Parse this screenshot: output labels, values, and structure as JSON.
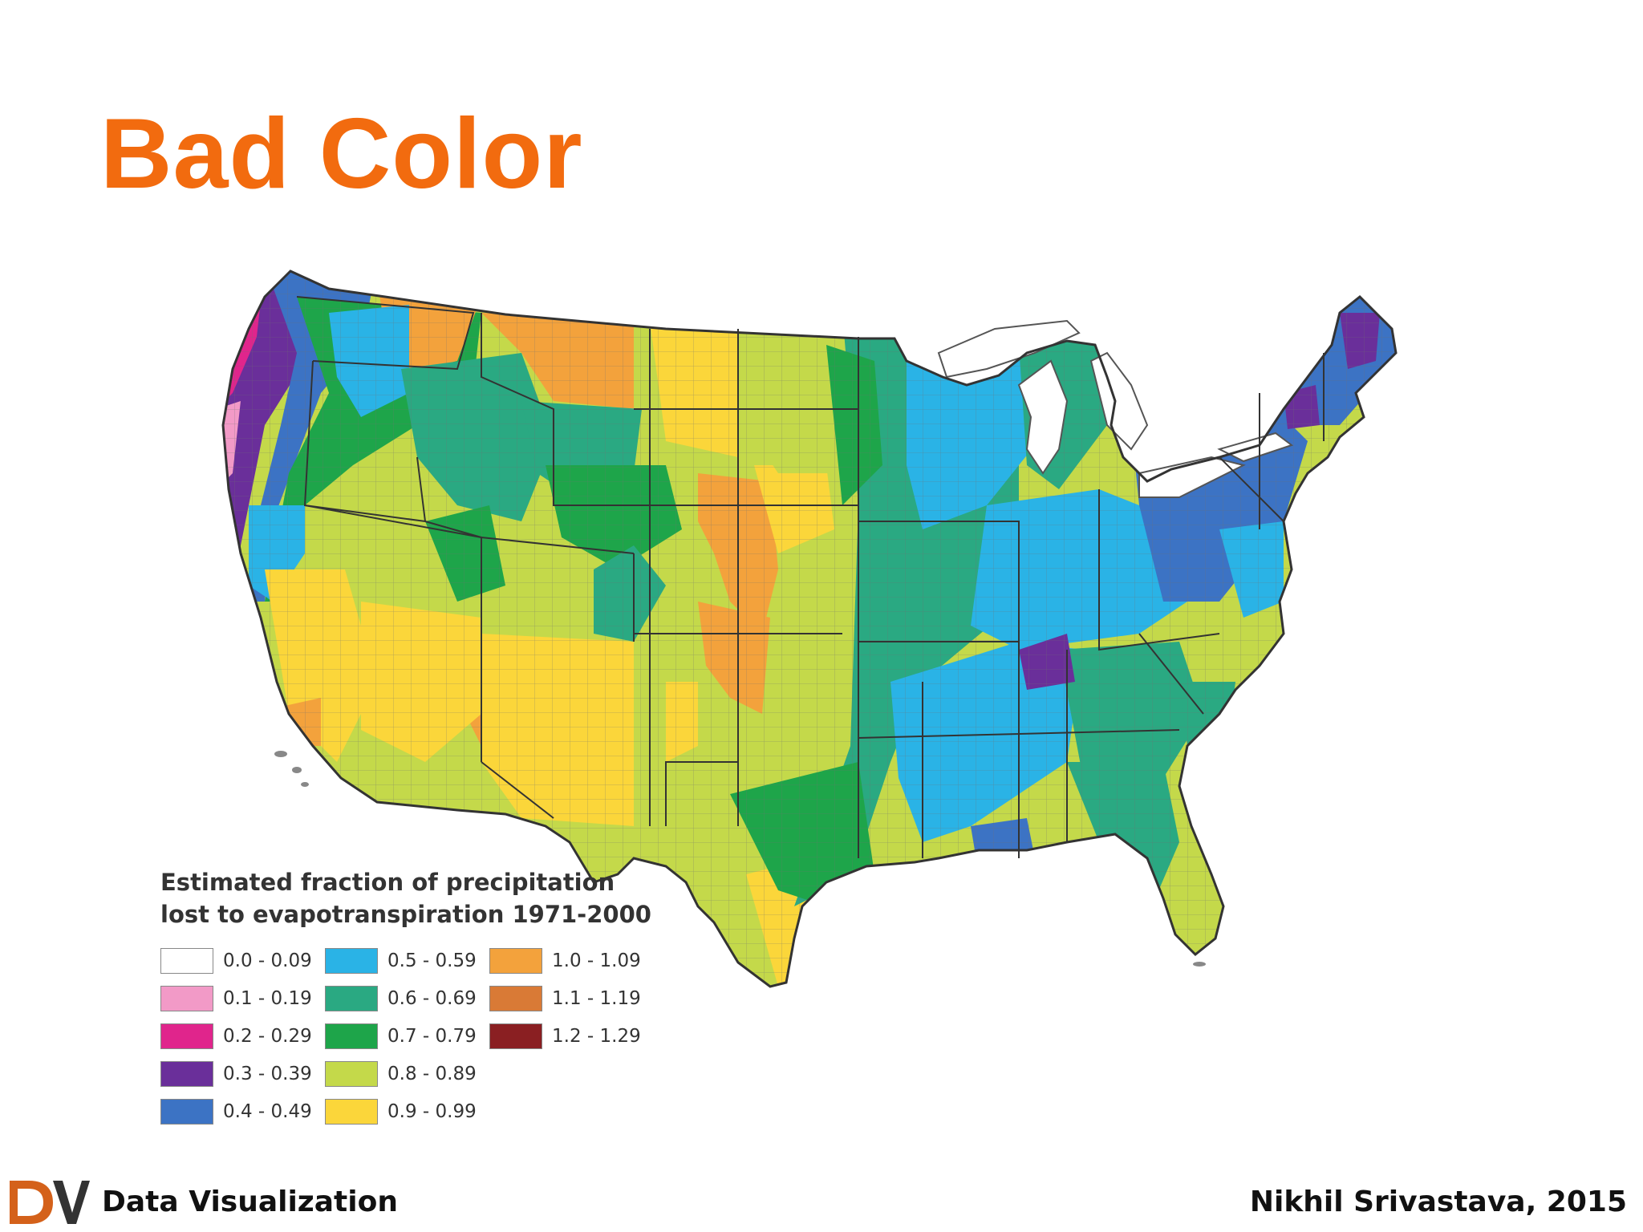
{
  "slide": {
    "title": "Bad Color"
  },
  "legend": {
    "title_line1": "Estimated fraction of precipitation",
    "title_line2": "lost to evapotranspiration 1971-2000",
    "items": [
      {
        "label": "0.0 - 0.09",
        "color": "#ffffff"
      },
      {
        "label": "0.1 - 0.19",
        "color": "#f29ac7"
      },
      {
        "label": "0.2 - 0.29",
        "color": "#e0258c"
      },
      {
        "label": "0.3 - 0.39",
        "color": "#6a2f9a"
      },
      {
        "label": "0.4 - 0.49",
        "color": "#3c73c4"
      },
      {
        "label": "0.5 - 0.59",
        "color": "#2ab3e6"
      },
      {
        "label": "0.6 - 0.69",
        "color": "#2aa982"
      },
      {
        "label": "0.7 - 0.79",
        "color": "#1ea54a"
      },
      {
        "label": "0.8 - 0.89",
        "color": "#c4d94a"
      },
      {
        "label": "0.9 - 0.99",
        "color": "#fbd63a"
      },
      {
        "label": "1.0 - 1.09",
        "color": "#f3a23c"
      },
      {
        "label": "1.1 - 1.19",
        "color": "#d97a36"
      },
      {
        "label": "1.2 - 1.29",
        "color": "#8a1f22"
      }
    ]
  },
  "footer": {
    "logo_text": "DV",
    "left_text": "Data Visualization",
    "right_text": "Nikhil Srivastava, 2015"
  },
  "colors": {
    "title": "#f26b0f",
    "logo_d": "#d4611a",
    "logo_v": "#333333"
  }
}
